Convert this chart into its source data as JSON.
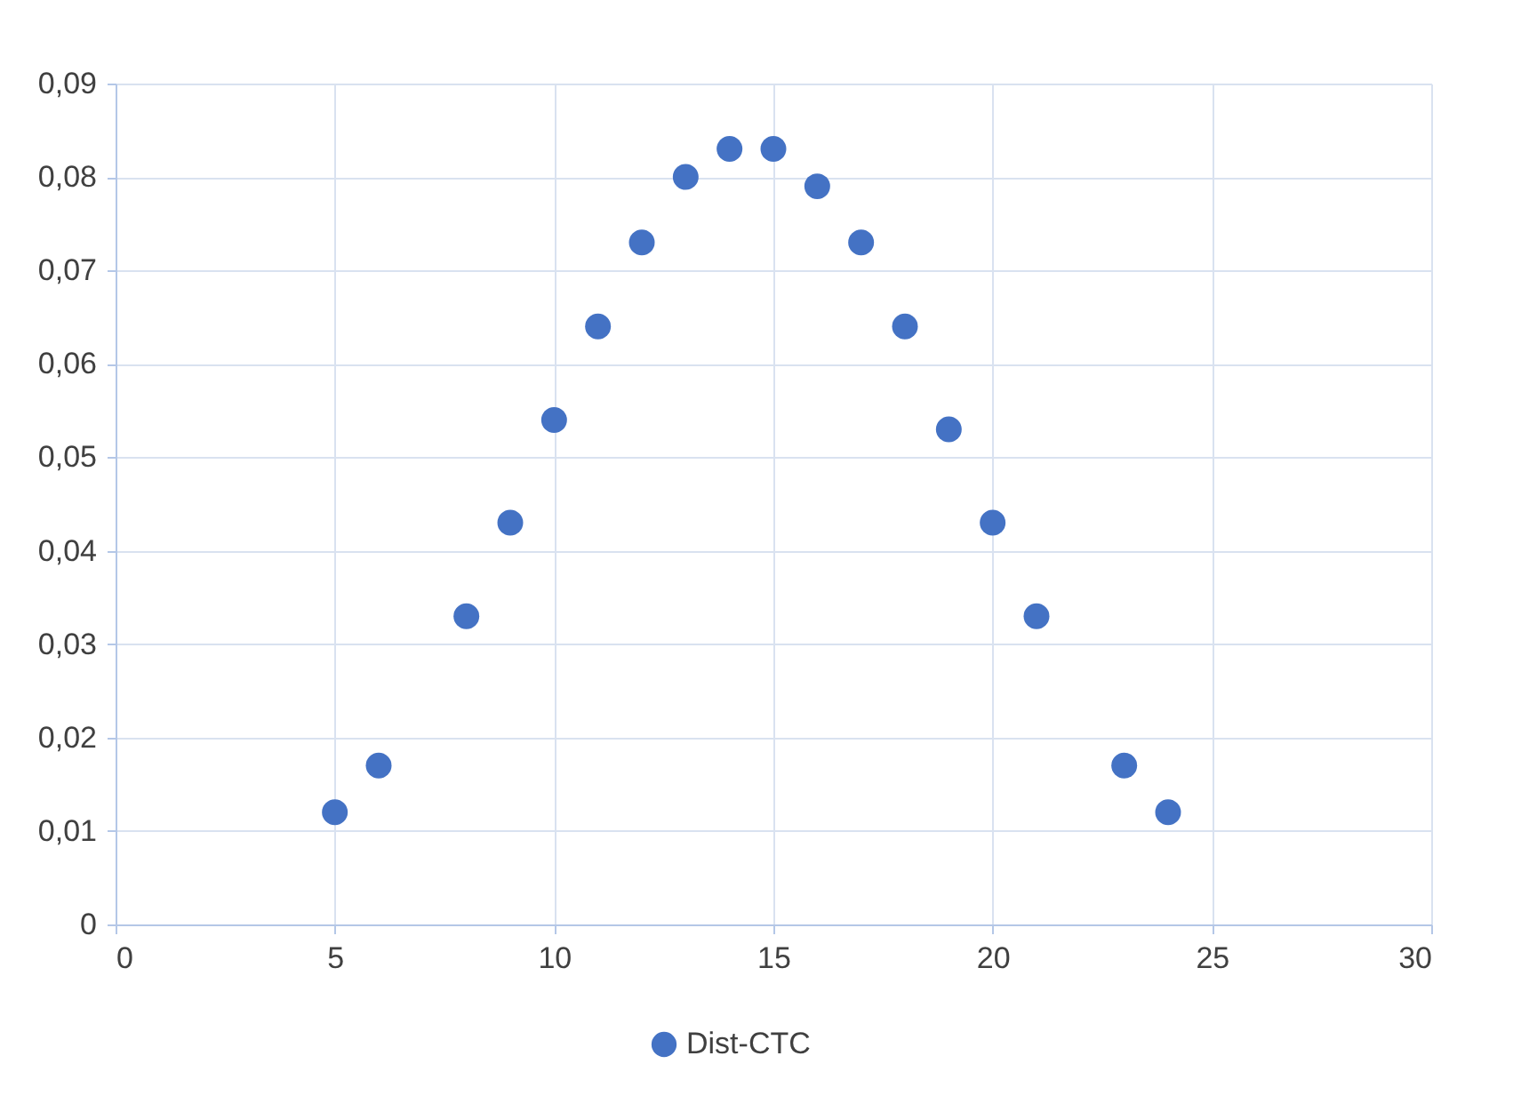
{
  "chart_data": {
    "type": "scatter",
    "x": [
      5,
      6,
      8,
      9,
      10,
      11,
      12,
      13,
      14,
      15,
      16,
      17,
      18,
      19,
      20,
      21,
      23,
      24
    ],
    "series": [
      {
        "name": "Dist-CTC",
        "color": "#4472c4",
        "values": [
          0.012,
          0.017,
          0.033,
          0.043,
          0.054,
          0.064,
          0.073,
          0.08,
          0.083,
          0.083,
          0.079,
          0.073,
          0.064,
          0.053,
          0.043,
          0.033,
          0.017,
          0.012
        ]
      }
    ],
    "xlim": [
      0,
      30
    ],
    "xticks": [
      0,
      5,
      10,
      15,
      20,
      25,
      30
    ],
    "ylim": [
      0,
      0.09
    ],
    "yticks": [
      0,
      {
        "value": 0.01,
        "label": "0,01"
      },
      {
        "value": 0.02,
        "label": "0,02"
      },
      {
        "value": 0.03,
        "label": "0,03"
      },
      {
        "value": 0.04,
        "label": "0,04"
      },
      {
        "value": 0.05,
        "label": "0,05"
      },
      {
        "value": 0.06,
        "label": "0,06"
      },
      {
        "value": 0.07,
        "label": "0,07"
      },
      {
        "value": 0.08,
        "label": "0,08"
      },
      {
        "value": 0.09,
        "label": "0,09"
      }
    ],
    "grid": true,
    "legend": "bottom",
    "marker": "circle"
  }
}
